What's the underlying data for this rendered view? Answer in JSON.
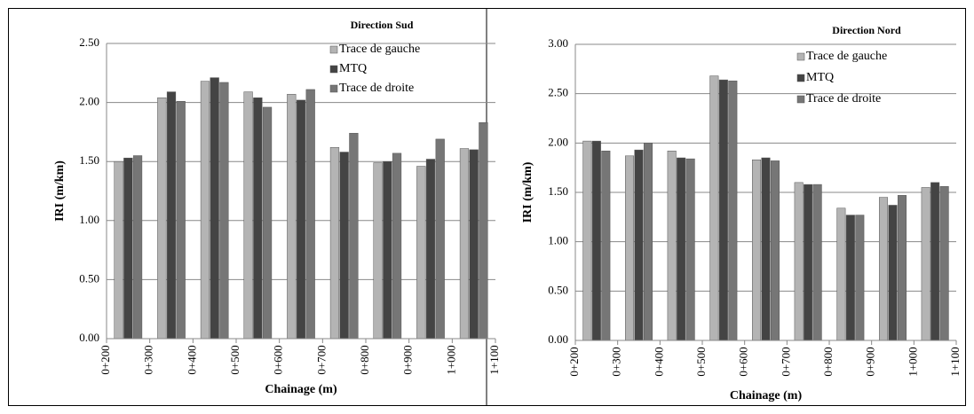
{
  "chart_data": [
    {
      "type": "bar",
      "title": "Direction Sud",
      "y_label": "IRI (m/km)",
      "x_label": "Chainage (m)",
      "xticks": [
        "0+200",
        "0+300",
        "0+400",
        "0+500",
        "0+600",
        "0+700",
        "0+800",
        "0+900",
        "1+000",
        "1+100"
      ],
      "series": [
        {
          "name": "Trace de gauche",
          "color": "#b4b4b4",
          "values": [
            1.5,
            2.04,
            2.18,
            2.09,
            2.07,
            1.62,
            1.49,
            1.46,
            1.61
          ]
        },
        {
          "name": "MTQ",
          "color": "#444444",
          "values": [
            1.53,
            2.09,
            2.21,
            2.04,
            2.02,
            1.58,
            1.5,
            1.52,
            1.6
          ]
        },
        {
          "name": "Trace de droite",
          "color": "#767676",
          "values": [
            1.55,
            2.01,
            2.17,
            1.96,
            2.11,
            1.74,
            1.57,
            1.69,
            1.83
          ]
        }
      ],
      "ylim": [
        0,
        2.5
      ],
      "yticks": [
        {
          "value": 0,
          "label": "0.00"
        },
        {
          "value": 0.5,
          "label": "0.50"
        },
        {
          "value": 1,
          "label": "1.00"
        },
        {
          "value": 1.5,
          "label": "1.50"
        },
        {
          "value": 2,
          "label": "2.00"
        },
        {
          "value": 2.5,
          "label": "2.50"
        }
      ],
      "grid": true
    },
    {
      "type": "bar",
      "title": "Direction Nord",
      "y_label": "IRI (m/km)",
      "x_label": "Chainage (m)",
      "xticks": [
        "0+200",
        "0+300",
        "0+400",
        "0+500",
        "0+600",
        "0+700",
        "0+800",
        "0+900",
        "1+000",
        "1+100"
      ],
      "series": [
        {
          "name": "Trace de gauche",
          "color": "#b4b4b4",
          "values": [
            2.02,
            1.87,
            1.92,
            2.68,
            1.83,
            1.6,
            1.34,
            1.45,
            1.55
          ]
        },
        {
          "name": "MTQ",
          "color": "#444444",
          "values": [
            2.02,
            1.93,
            1.85,
            2.64,
            1.85,
            1.58,
            1.27,
            1.37,
            1.6
          ]
        },
        {
          "name": "Trace de droite",
          "color": "#767676",
          "values": [
            1.92,
            2.0,
            1.84,
            2.63,
            1.82,
            1.58,
            1.27,
            1.47,
            1.56
          ]
        }
      ],
      "ylim": [
        0,
        3
      ],
      "yticks": [
        {
          "value": 0,
          "label": "0.00"
        },
        {
          "value": 0.5,
          "label": "0.50"
        },
        {
          "value": 1,
          "label": "1.00"
        },
        {
          "value": 1.5,
          "label": "1.50"
        },
        {
          "value": 2,
          "label": "2.00"
        },
        {
          "value": 2.5,
          "label": "2.50"
        },
        {
          "value": 3,
          "label": "3.00"
        }
      ],
      "grid": true
    }
  ]
}
